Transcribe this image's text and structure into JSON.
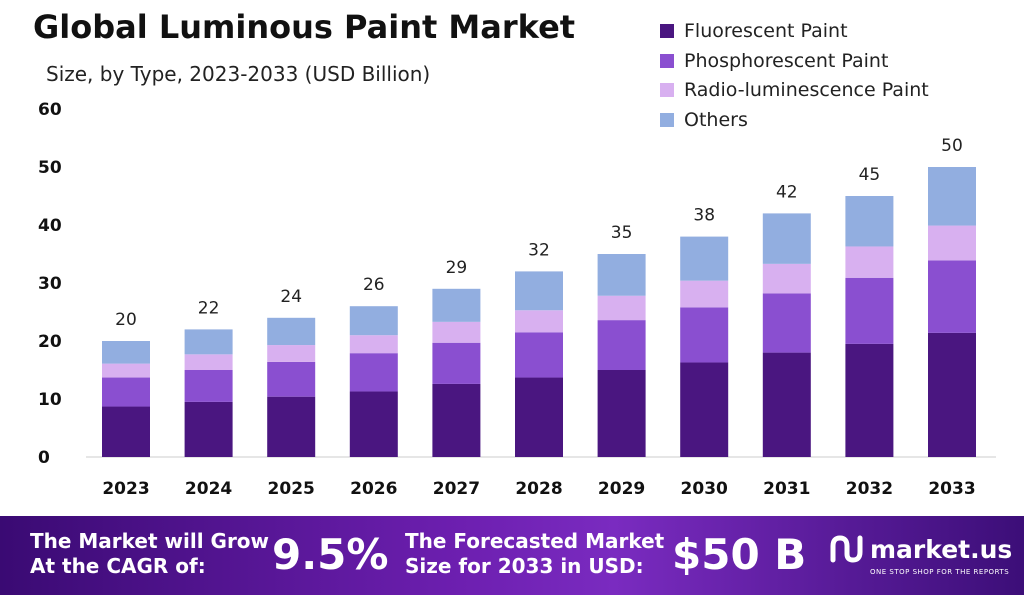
{
  "title": "Global Luminous Paint Market",
  "subtitle": "Size, by Type, 2023-2033 (USD Billion)",
  "chart_data": {
    "type": "bar",
    "stacked": true,
    "categories": [
      "2023",
      "2024",
      "2025",
      "2026",
      "2027",
      "2028",
      "2029",
      "2030",
      "2031",
      "2032",
      "2033"
    ],
    "totals": [
      20,
      22,
      24,
      26,
      29,
      32,
      35,
      38,
      42,
      45,
      50
    ],
    "series": [
      {
        "name": "Fluorescent Paint",
        "color": "#4a1680",
        "values": [
          8.7,
          9.5,
          10.4,
          11.3,
          12.6,
          13.7,
          15.0,
          16.3,
          18.0,
          19.5,
          21.4
        ]
      },
      {
        "name": "Phosphorescent Paint",
        "color": "#8a4fd0",
        "values": [
          5.0,
          5.5,
          6.0,
          6.6,
          7.1,
          7.8,
          8.6,
          9.5,
          10.2,
          11.4,
          12.5
        ]
      },
      {
        "name": "Radio-luminescence Paint",
        "color": "#d8b0f0",
        "values": [
          2.4,
          2.7,
          2.9,
          3.1,
          3.6,
          3.8,
          4.2,
          4.6,
          5.1,
          5.4,
          6.0
        ]
      },
      {
        "name": "Others",
        "color": "#92aee0",
        "values": [
          3.9,
          4.3,
          4.7,
          5.0,
          5.7,
          6.7,
          7.2,
          7.6,
          8.7,
          8.7,
          10.1
        ]
      }
    ],
    "ylim": [
      0,
      60
    ],
    "yticks": [
      0,
      10,
      20,
      30,
      40,
      50,
      60
    ],
    "legend_position": "top-right",
    "grid": false
  },
  "footer": {
    "cagr_label_line1": "The Market will Grow",
    "cagr_label_line2": "At the CAGR of:",
    "cagr_value": "9.5%",
    "forecast_label_line1": "The Forecasted Market",
    "forecast_label_line2": "Size for 2033 in USD:",
    "forecast_value": "$50 B",
    "brand_name": "market.us",
    "brand_tagline": "ONE STOP SHOP FOR THE REPORTS"
  }
}
